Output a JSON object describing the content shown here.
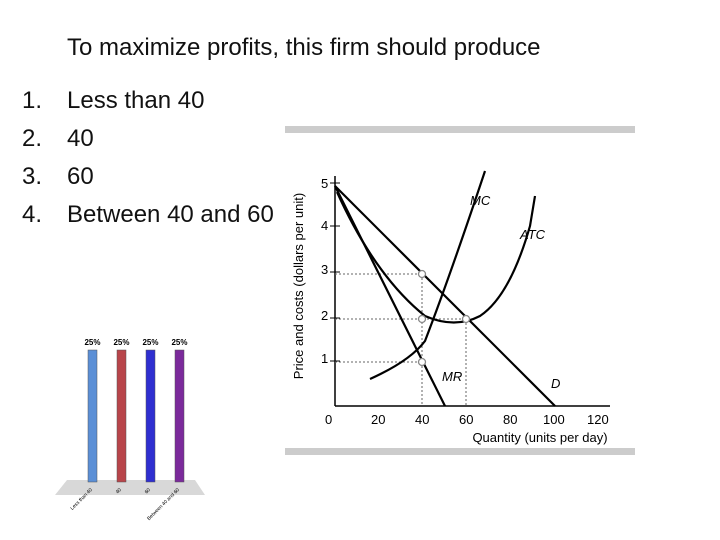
{
  "question": "To maximize profits, this firm should produce",
  "options": [
    {
      "num": "1.",
      "text": "Less than 40"
    },
    {
      "num": "2.",
      "text": "40"
    },
    {
      "num": "3.",
      "text": "60"
    },
    {
      "num": "4.",
      "text": "Between 40 and 60"
    }
  ],
  "econ_graph": {
    "ylabel": "Price and costs (dollars per unit)",
    "xlabel": "Quantity (units per day)",
    "yticks": [
      "1",
      "2",
      "3",
      "4",
      "5"
    ],
    "xticks": [
      "0",
      "20",
      "40",
      "60",
      "80",
      "100",
      "120"
    ],
    "curve_labels": {
      "mc": "MC",
      "atc": "ATC",
      "mr": "MR",
      "d": "D"
    },
    "colors": {
      "curve": "#000000",
      "frame": "#cccccc",
      "dots": "#888888"
    }
  },
  "chart_data": {
    "type": "bar",
    "categories": [
      "Less than 40",
      "40",
      "60",
      "Between 40 and 60"
    ],
    "values": [
      25,
      25,
      25,
      25
    ],
    "value_labels": [
      "25%",
      "25%",
      "25%",
      "25%"
    ],
    "ylim": [
      0,
      25
    ],
    "colors": [
      "#5b8fd6",
      "#b8454a",
      "#2f2fd0",
      "#7b2a9b"
    ]
  }
}
